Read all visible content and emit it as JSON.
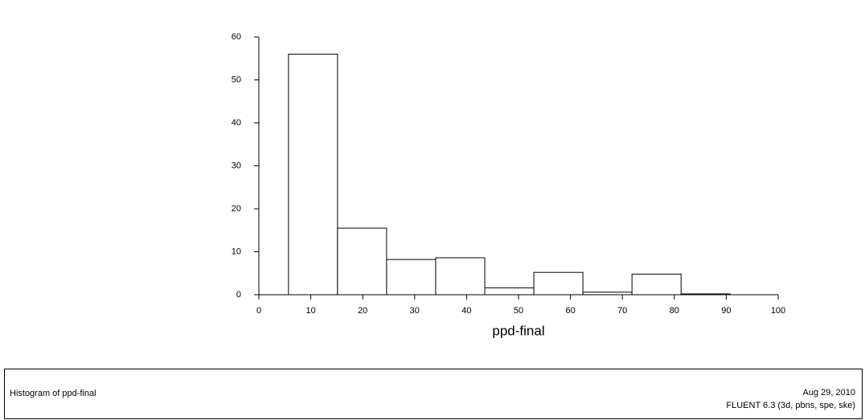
{
  "chart_data": {
    "type": "histogram",
    "xlabel": "ppd-final",
    "bins": [
      5.7,
      15.15,
      24.6,
      34.05,
      43.5,
      52.95,
      62.4,
      71.85,
      81.3,
      90.75
    ],
    "values": [
      56,
      15.5,
      8.2,
      8.6,
      1.6,
      5.2,
      0.6,
      4.8,
      0.2
    ],
    "color": "#ffffff",
    "xlim": [
      0,
      100
    ],
    "xticks": [
      0,
      10,
      20,
      30,
      40,
      50,
      60,
      70,
      80,
      90,
      100
    ],
    "ylim": [
      0,
      60
    ],
    "yticks": [
      0,
      10,
      20,
      30,
      40,
      50,
      60
    ],
    "grid": false
  },
  "footer": {
    "title": "Histogram of ppd-final",
    "date": "Aug 29, 2010",
    "version": "FLUENT 6.3 (3d, pbns, spe, ske)"
  }
}
